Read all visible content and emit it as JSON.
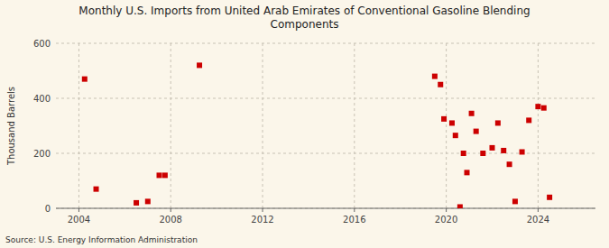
{
  "chart_data": {
    "type": "scatter",
    "title": "Monthly U.S. Imports from United Arab Emirates of Conventional Gasoline Blending\nComponents",
    "ylabel": "Thousand Barrels",
    "annotations": [
      "Source: U.S. Energy Information Administration"
    ],
    "color": "#cc0000",
    "marker": "square",
    "grid": true,
    "xlim": [
      2003.0,
      2026.5
    ],
    "ylim": [
      0,
      600
    ],
    "xticks": [
      2004,
      2008,
      2012,
      2016,
      2020,
      2024
    ],
    "yticks": [
      0,
      200,
      400,
      600
    ],
    "x": [
      2004.25,
      2004.75,
      2006.5,
      2007.0,
      2007.5,
      2007.75,
      2009.25,
      2019.5,
      2019.75,
      2019.9,
      2020.25,
      2020.4,
      2020.6,
      2020.75,
      2020.9,
      2021.1,
      2021.3,
      2021.6,
      2022.0,
      2022.25,
      2022.5,
      2022.75,
      2023.0,
      2023.3,
      2023.6,
      2024.0,
      2024.25,
      2024.5
    ],
    "values": [
      470,
      70,
      20,
      25,
      120,
      120,
      520,
      480,
      450,
      325,
      310,
      265,
      5,
      200,
      130,
      345,
      280,
      200,
      220,
      310,
      210,
      160,
      25,
      205,
      320,
      370,
      365,
      40
    ]
  }
}
